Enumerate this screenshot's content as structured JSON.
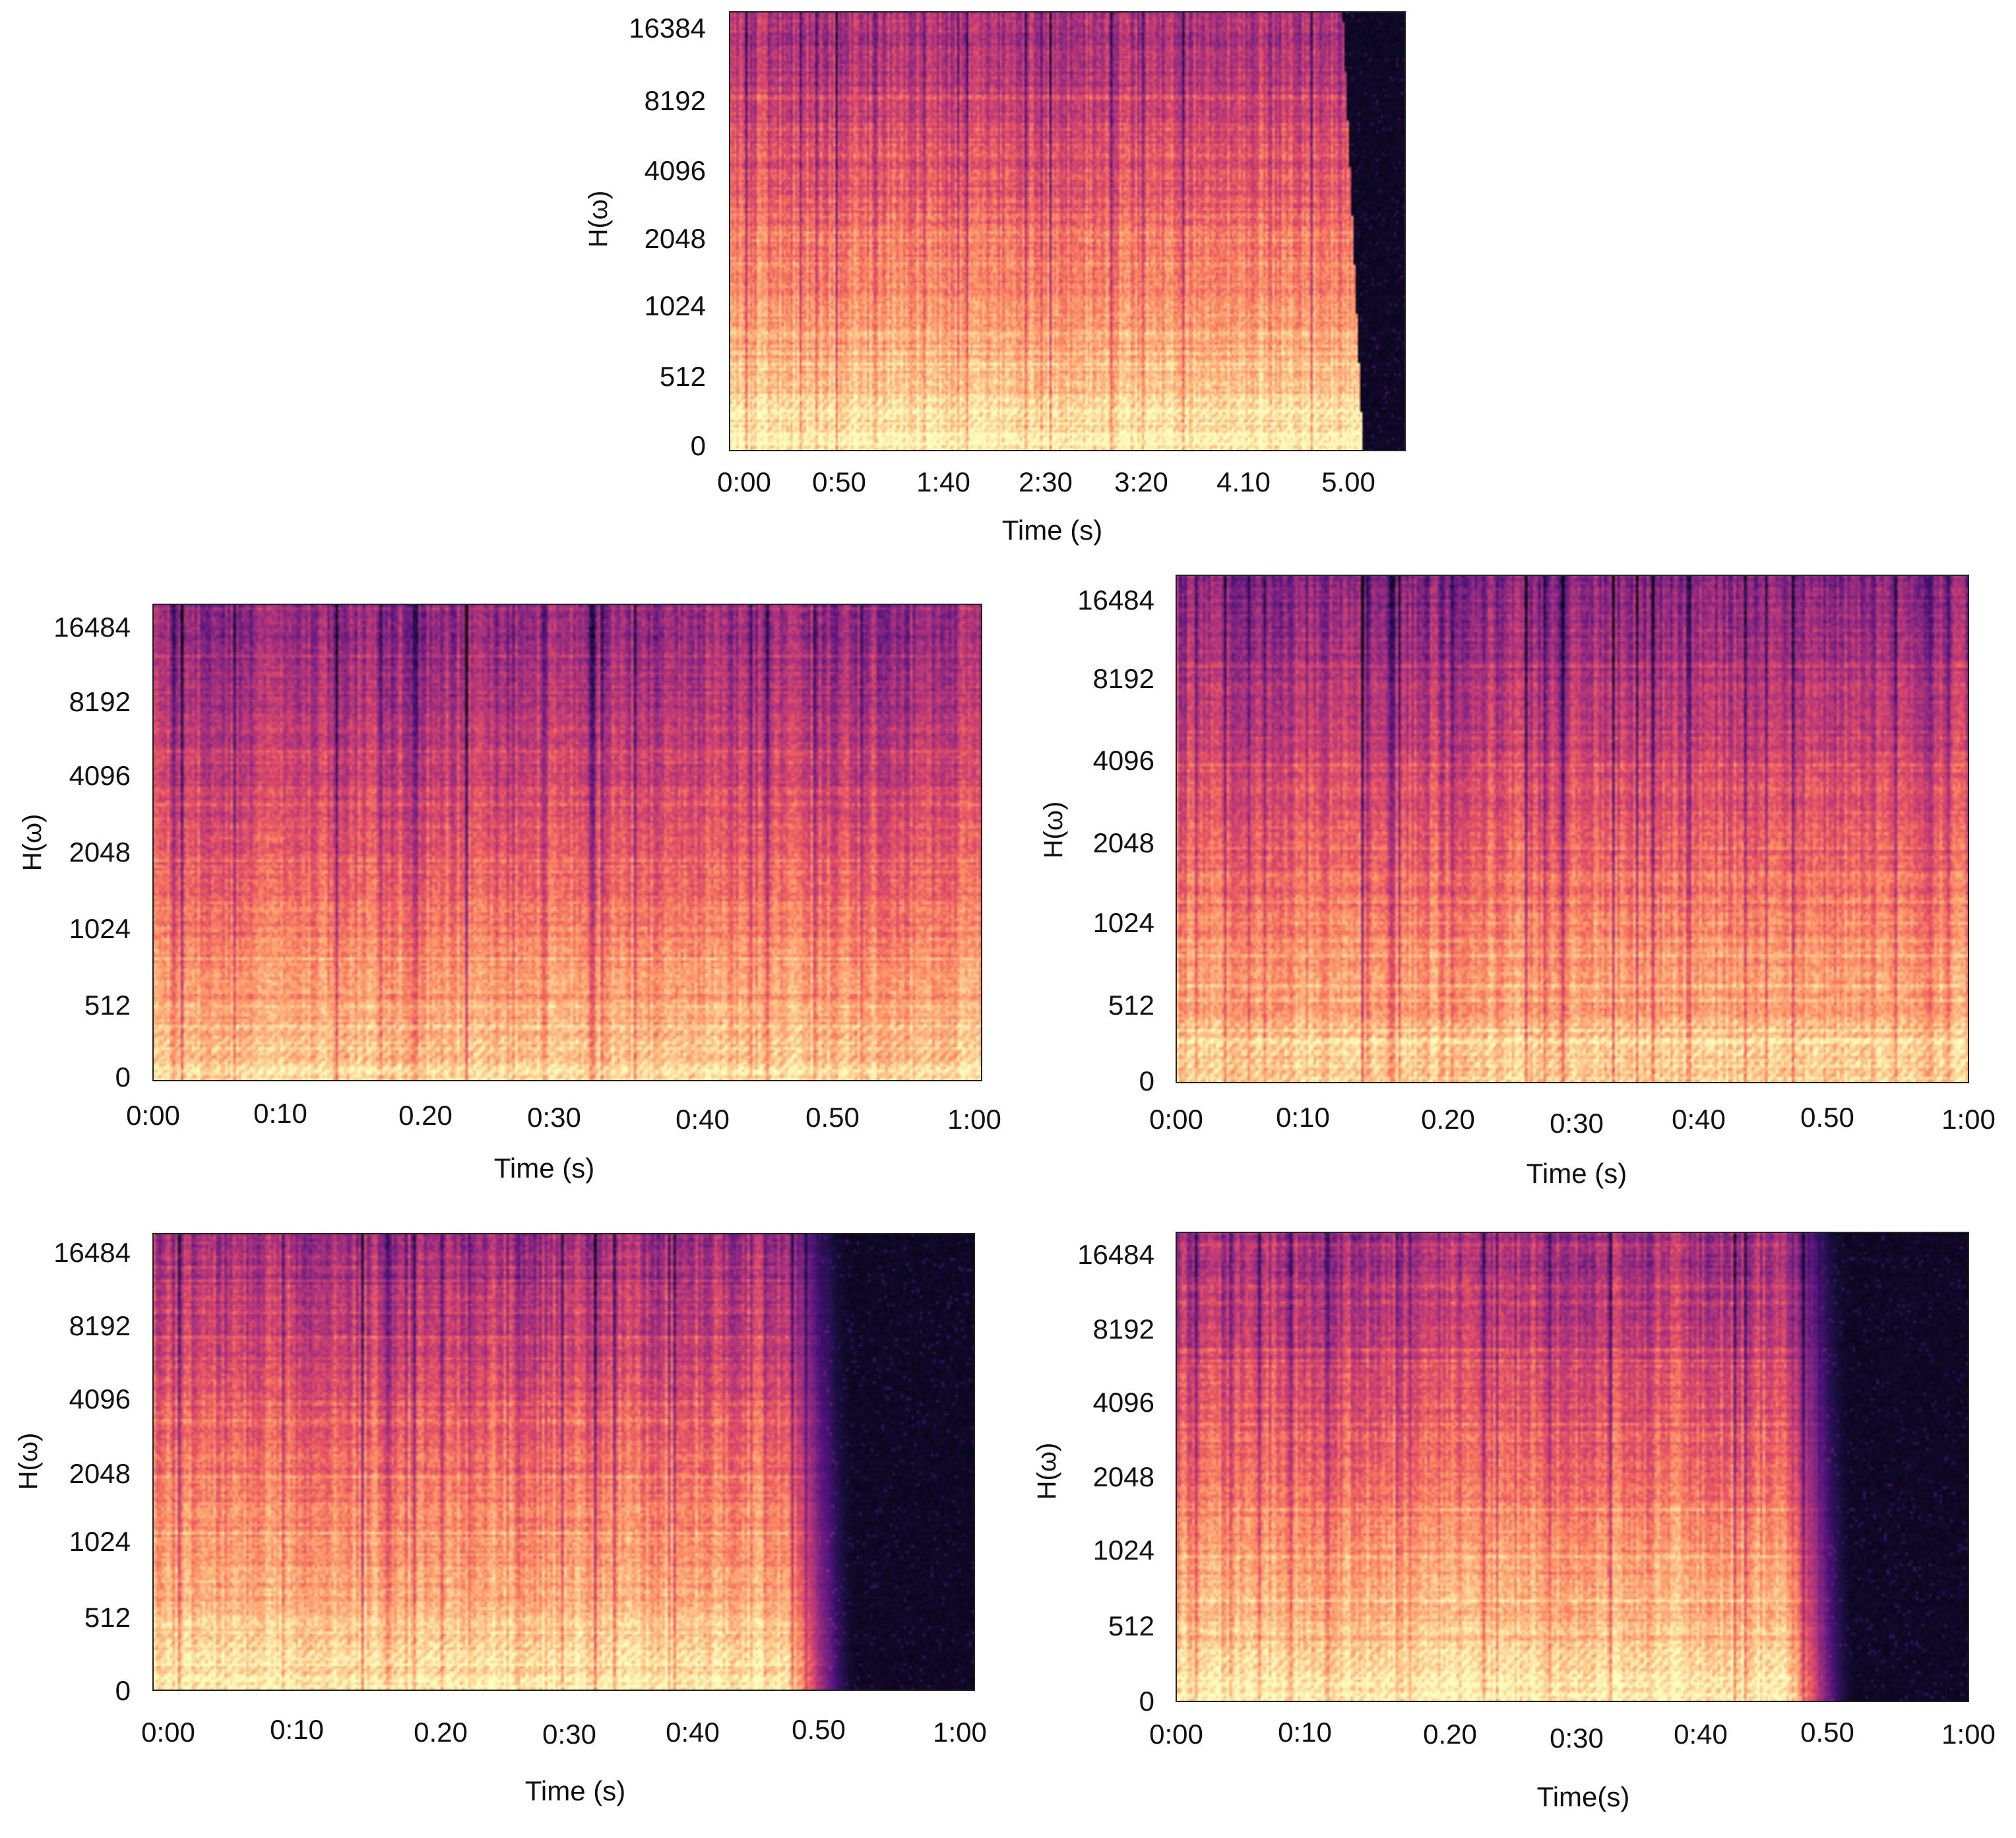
{
  "figure": {
    "background": "#ffffff"
  },
  "colormap": [
    "#000004",
    "#1c1044",
    "#4f127b",
    "#812581",
    "#b5367a",
    "#e55064",
    "#fb8761",
    "#fec287",
    "#fcfdbf"
  ],
  "chart_data": [
    {
      "id": "top",
      "type": "heatmap",
      "title": "",
      "xlabel": "Time (s)",
      "ylabel": "H(ω)",
      "x_ticks": [
        "0:00",
        "0:50",
        "1:40",
        "2:30",
        "3:20",
        "4.10",
        "5.00"
      ],
      "y_ticks": [
        "0",
        "512",
        "1024",
        "2048",
        "4096",
        "8192",
        "16384"
      ],
      "y_scale": "log-like (octave ticks)",
      "x_range": [
        0,
        330
      ],
      "signal_end": 300,
      "end_style": "taper",
      "brightness": 0.62,
      "colorbar": false
    },
    {
      "id": "middle-left",
      "type": "heatmap",
      "title": "",
      "xlabel": "Time (s)",
      "ylabel": "H(ω)",
      "x_ticks": [
        "0:00",
        "0:10",
        "0.20",
        "0:30",
        "0:40",
        "0.50",
        "1:00"
      ],
      "y_ticks": [
        "0",
        "512",
        "1024",
        "2048",
        "4096",
        "8192",
        "16484"
      ],
      "y_scale": "log-like (octave ticks)",
      "x_range": [
        0,
        60
      ],
      "signal_end": 60,
      "end_style": "none",
      "brightness": 0.56,
      "colorbar": false
    },
    {
      "id": "middle-right",
      "type": "heatmap",
      "title": "",
      "xlabel": "Time (s)",
      "ylabel": "H(ω)",
      "x_ticks": [
        "0:00",
        "0:10",
        "0.20",
        "0:30",
        "0:40",
        "0.50",
        "1:00"
      ],
      "y_ticks": [
        "0",
        "512",
        "1024",
        "2048",
        "4096",
        "8192",
        "16484"
      ],
      "y_scale": "log-like (octave ticks)",
      "x_range": [
        0,
        60
      ],
      "signal_end": 60,
      "end_style": "none",
      "brightness": 0.56,
      "colorbar": false
    },
    {
      "id": "bottom-left",
      "type": "heatmap",
      "title": "",
      "xlabel": "Time (s)",
      "ylabel": "H(ω)",
      "x_ticks": [
        "0:00",
        "0:10",
        "0.20",
        "0:30",
        "0:40",
        "0.50",
        "1:00"
      ],
      "y_ticks": [
        "0",
        "512",
        "1024",
        "2048",
        "4096",
        "8192",
        "16484"
      ],
      "y_scale": "log-like (octave ticks)",
      "x_range": [
        0,
        60
      ],
      "signal_end": 48,
      "end_style": "fade",
      "brightness": 0.62,
      "colorbar": false
    },
    {
      "id": "bottom-right",
      "type": "heatmap",
      "title": "",
      "xlabel": "Time(s)",
      "ylabel": "H(ω)",
      "x_ticks": [
        "0:00",
        "0:10",
        "0.20",
        "0:30",
        "0:40",
        "0.50",
        "1:00"
      ],
      "y_ticks": [
        "0",
        "512",
        "1024",
        "2048",
        "4096",
        "8192",
        "16484"
      ],
      "y_scale": "log-like (octave ticks)",
      "x_range": [
        0,
        60
      ],
      "signal_end": 48,
      "end_style": "fade",
      "brightness": 0.62,
      "colorbar": false
    }
  ]
}
